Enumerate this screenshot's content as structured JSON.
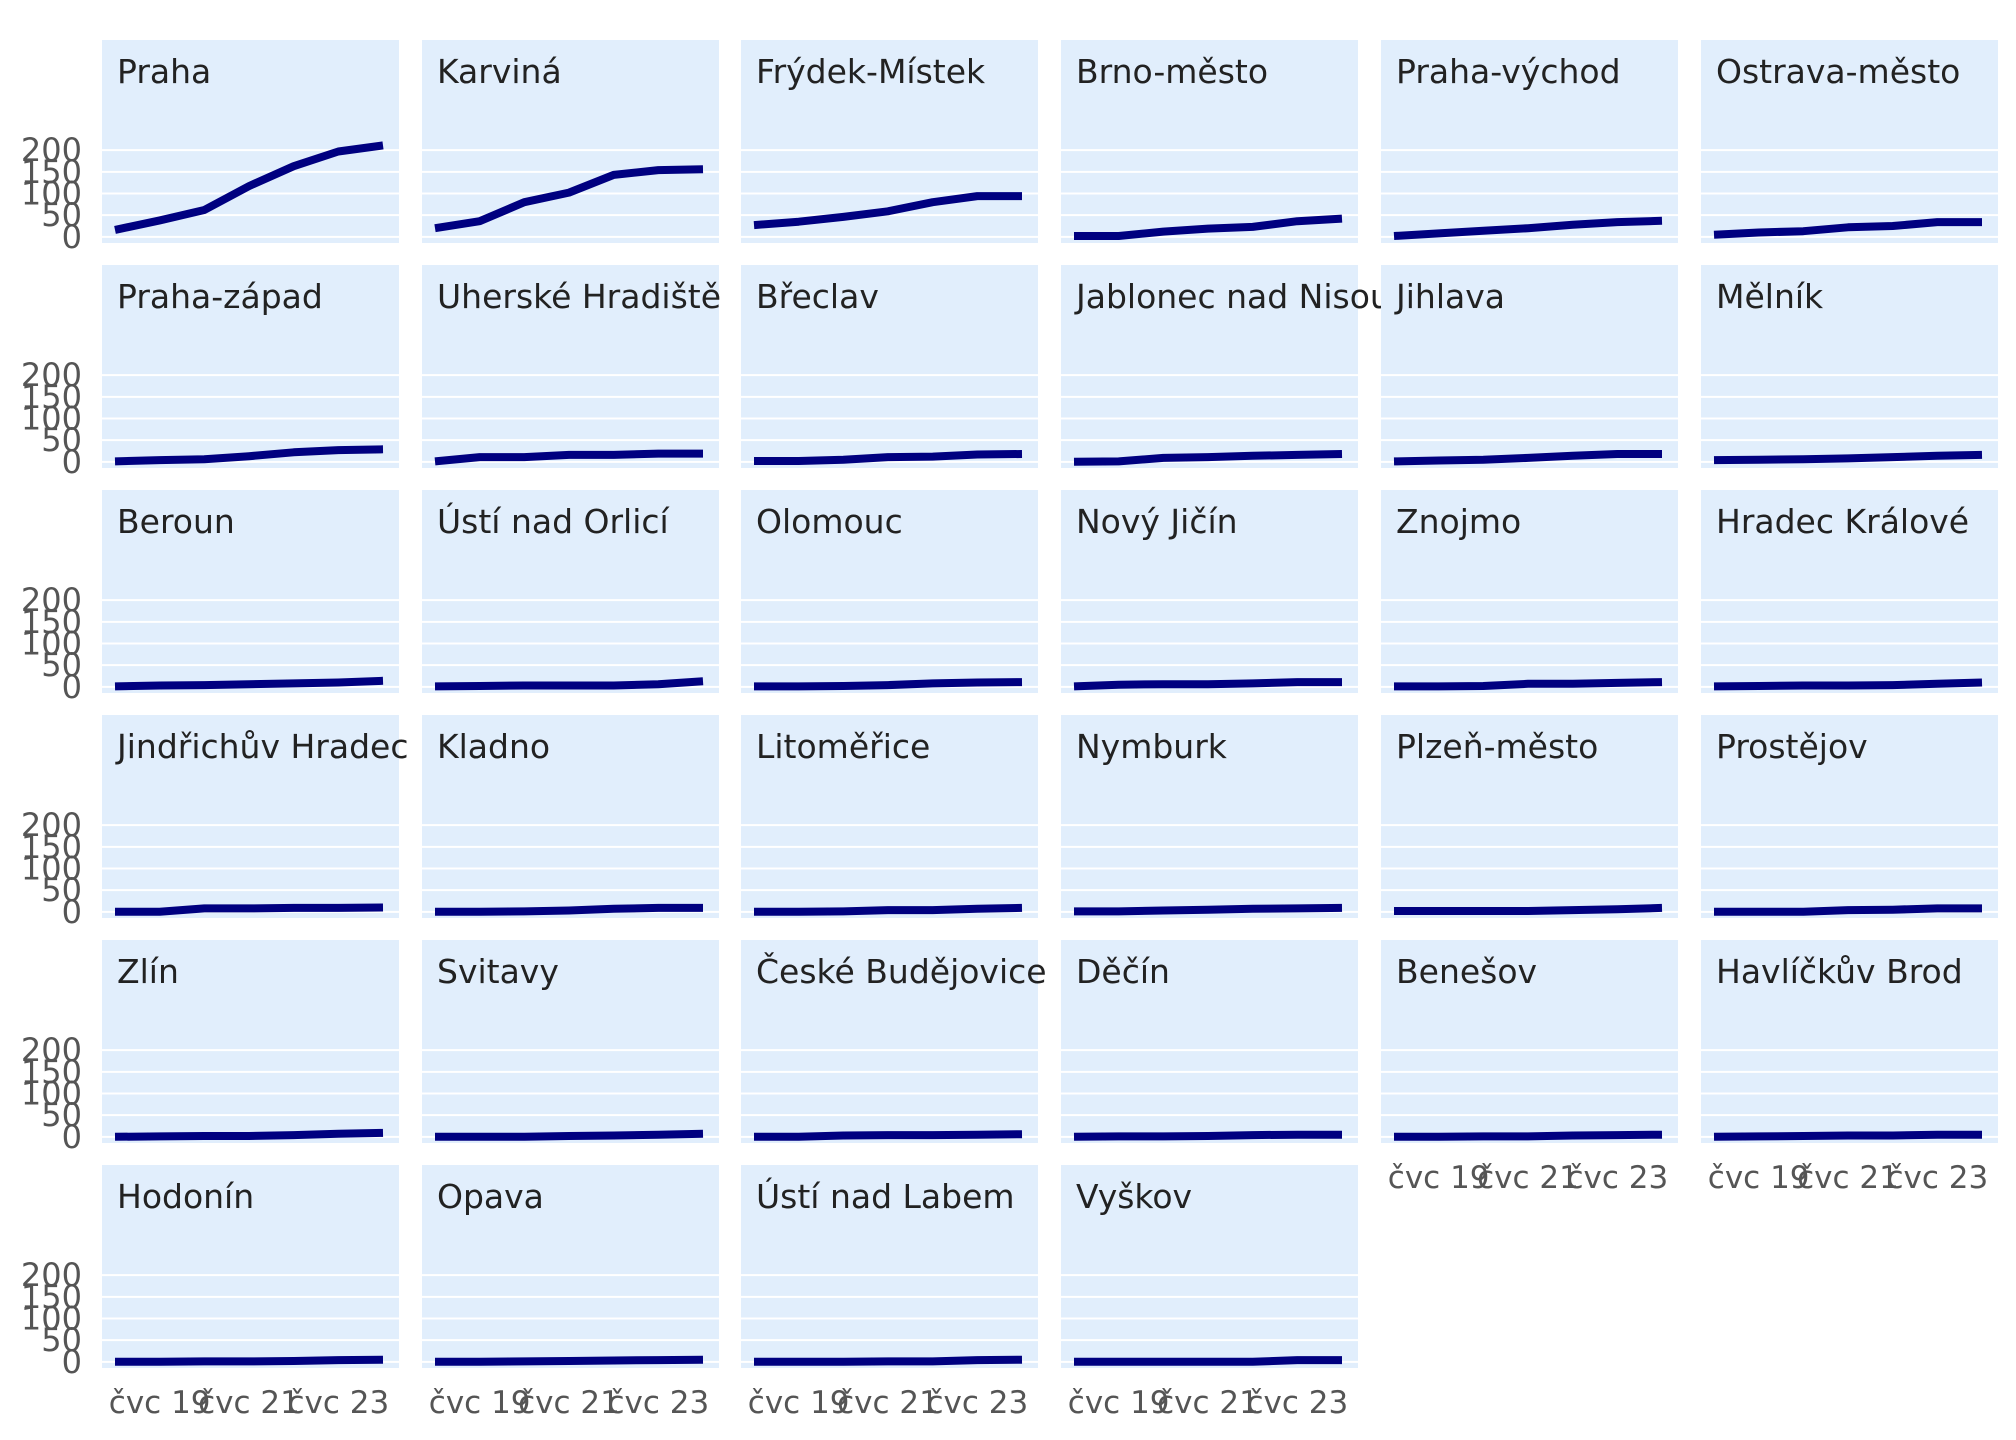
{
  "chart_data": {
    "type": "line",
    "layout": "small-multiples",
    "facet_cols": 6,
    "x_ticks": [
      "čvc 19",
      "čvc 21",
      "čvc 23"
    ],
    "x_tick_positions": [
      1,
      3,
      5
    ],
    "x": [
      0,
      1,
      2,
      3,
      4,
      5,
      6
    ],
    "y_ticks": [
      0,
      50,
      100,
      150,
      200
    ],
    "ylim": [
      -5,
      235
    ],
    "grid": true,
    "line_color": "#000080",
    "panel_bg": "#e1eefc",
    "panels": [
      {
        "title": "Praha",
        "values": [
          16,
          38,
          62,
          117,
          163,
          197,
          211
        ]
      },
      {
        "title": "Karviná",
        "values": [
          20,
          36,
          80,
          102,
          143,
          154,
          156
        ]
      },
      {
        "title": "Frýdek-Místek",
        "values": [
          27,
          35,
          46,
          59,
          80,
          94,
          94
        ]
      },
      {
        "title": "Brno-město",
        "values": [
          2,
          2,
          12,
          19,
          23,
          36,
          42
        ]
      },
      {
        "title": "Praha-východ",
        "values": [
          2,
          8,
          14,
          20,
          28,
          34,
          37
        ]
      },
      {
        "title": "Ostrava-město",
        "values": [
          5,
          10,
          13,
          22,
          25,
          34,
          34
        ]
      },
      {
        "title": "Praha-západ",
        "values": [
          1,
          4,
          6,
          13,
          22,
          27,
          29
        ]
      },
      {
        "title": "Uherské Hradiště",
        "values": [
          1,
          11,
          11,
          16,
          16,
          19,
          19
        ]
      },
      {
        "title": "Břeclav",
        "values": [
          2,
          2,
          5,
          11,
          12,
          17,
          18
        ]
      },
      {
        "title": "Jablonec nad Nisou",
        "values": [
          0,
          1,
          9,
          11,
          14,
          16,
          18
        ]
      },
      {
        "title": "Jihlava",
        "values": [
          1,
          3,
          5,
          9,
          14,
          18,
          18
        ]
      },
      {
        "title": "Mělník",
        "values": [
          4,
          5,
          6,
          8,
          11,
          14,
          16
        ]
      },
      {
        "title": "Beroun",
        "values": [
          1,
          3,
          4,
          6,
          8,
          10,
          14
        ]
      },
      {
        "title": "Ústí nad Orlicí",
        "values": [
          1,
          2,
          3,
          3,
          3,
          6,
          13
        ]
      },
      {
        "title": "Olomouc",
        "values": [
          1,
          1,
          2,
          4,
          8,
          10,
          11
        ]
      },
      {
        "title": "Nový Jičín",
        "values": [
          1,
          5,
          6,
          6,
          8,
          11,
          11
        ]
      },
      {
        "title": "Znojmo",
        "values": [
          1,
          1,
          2,
          7,
          7,
          9,
          11
        ]
      },
      {
        "title": "Hradec Králové",
        "values": [
          1,
          2,
          3,
          3,
          4,
          7,
          10
        ]
      },
      {
        "title": "Jindřichův Hradec",
        "values": [
          0,
          0,
          8,
          8,
          9,
          9,
          10
        ]
      },
      {
        "title": "Kladno",
        "values": [
          0,
          0,
          1,
          3,
          7,
          9,
          9
        ]
      },
      {
        "title": "Litoměřice",
        "values": [
          0,
          0,
          1,
          4,
          4,
          7,
          9
        ]
      },
      {
        "title": "Nymburk",
        "values": [
          1,
          1,
          3,
          5,
          7,
          8,
          9
        ]
      },
      {
        "title": "Plzeň-město",
        "values": [
          2,
          2,
          2,
          2,
          4,
          6,
          9
        ]
      },
      {
        "title": "Prostějov",
        "values": [
          0,
          0,
          0,
          4,
          5,
          8,
          8
        ]
      },
      {
        "title": "Zlín",
        "values": [
          0,
          1,
          2,
          2,
          4,
          7,
          9
        ]
      },
      {
        "title": "Svitavy",
        "values": [
          0,
          0,
          0,
          2,
          3,
          5,
          7
        ]
      },
      {
        "title": "České Budějovice",
        "values": [
          0,
          0,
          3,
          4,
          4,
          5,
          6
        ]
      },
      {
        "title": "Děčín",
        "values": [
          0,
          1,
          1,
          2,
          4,
          5,
          5
        ]
      },
      {
        "title": "Benešov",
        "values": [
          0,
          0,
          1,
          1,
          3,
          4,
          5
        ]
      },
      {
        "title": "Havlíčkův Brod",
        "values": [
          0,
          1,
          2,
          3,
          3,
          5,
          5
        ]
      },
      {
        "title": "Hodonín",
        "values": [
          0,
          0,
          1,
          1,
          2,
          4,
          5
        ]
      },
      {
        "title": "Opava",
        "values": [
          0,
          0,
          1,
          2,
          3,
          4,
          5
        ]
      },
      {
        "title": "Ústí nad Labem",
        "values": [
          0,
          0,
          0,
          1,
          1,
          4,
          5
        ]
      },
      {
        "title": "Vyškov",
        "values": [
          0,
          0,
          0,
          0,
          0,
          4,
          4
        ]
      }
    ]
  }
}
